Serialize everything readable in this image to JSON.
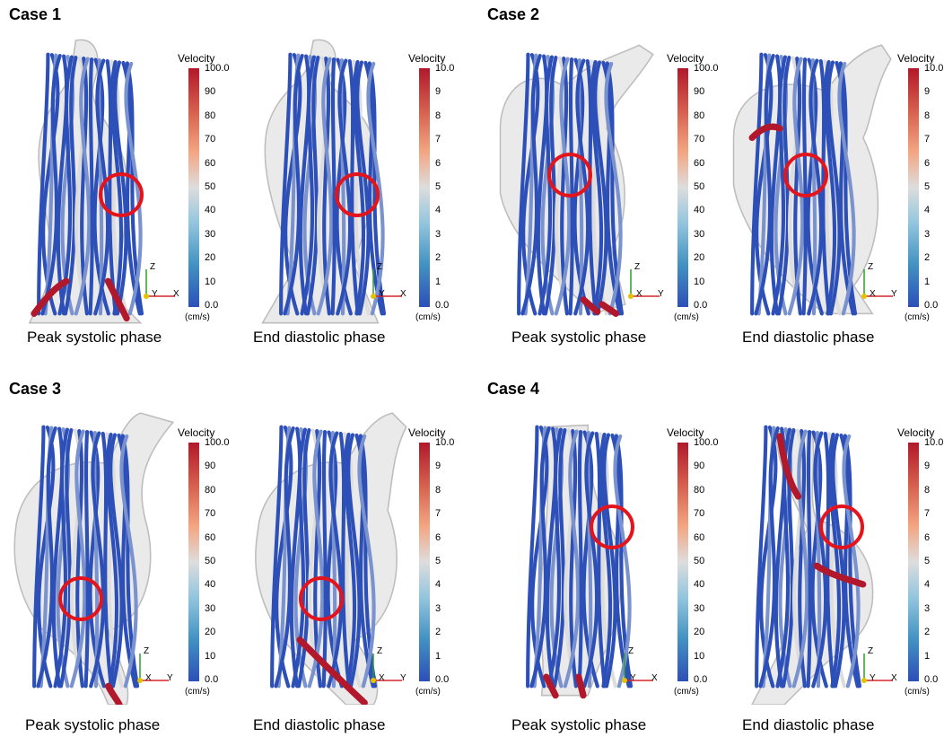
{
  "cases": [
    {
      "title": "Case 1",
      "panels": [
        {
          "caption": "Peak systolic phase",
          "bar": {
            "title": "Velocity",
            "ticks": [
              "100.0",
              "90",
              "80",
              "70",
              "60",
              "50",
              "40",
              "30",
              "20",
              "10",
              "0.0"
            ],
            "unit": "(cm/s)"
          },
          "axes": [
            "Z",
            "Y",
            "X"
          ]
        },
        {
          "caption": "End diastolic phase",
          "bar": {
            "title": "Velocity",
            "ticks": [
              "10.0",
              "9",
              "8",
              "7",
              "6",
              "5",
              "4",
              "3",
              "2",
              "1",
              "0.0"
            ],
            "unit": "(cm/s)"
          },
          "axes": [
            "Z",
            "Y",
            "X"
          ]
        }
      ]
    },
    {
      "title": "Case 2",
      "panels": [
        {
          "caption": "Peak systolic phase",
          "bar": {
            "title": "Velocity",
            "ticks": [
              "100.0",
              "90",
              "80",
              "70",
              "60",
              "50",
              "40",
              "30",
              "20",
              "10",
              "0.0"
            ],
            "unit": "(cm/s)"
          },
          "axes": [
            "Z",
            "X",
            "Y"
          ]
        },
        {
          "caption": "End diastolic phase",
          "bar": {
            "title": "Velocity",
            "ticks": [
              "10.0",
              "9",
              "8",
              "7",
              "6",
              "5",
              "4",
              "3",
              "2",
              "1",
              "0.0"
            ],
            "unit": "(cm/s)"
          },
          "axes": [
            "Z",
            "X",
            "Y"
          ]
        }
      ]
    },
    {
      "title": "Case 3",
      "panels": [
        {
          "caption": "Peak systolic phase",
          "bar": {
            "title": "Velocity",
            "ticks": [
              "100.0",
              "90",
              "80",
              "70",
              "60",
              "50",
              "40",
              "30",
              "20",
              "10",
              "0.0"
            ],
            "unit": "(cm/s)"
          },
          "axes": [
            "Z",
            "X",
            "Y"
          ]
        },
        {
          "caption": "End diastolic phase",
          "bar": {
            "title": "Velocity",
            "ticks": [
              "10.0",
              "9",
              "8",
              "7",
              "6",
              "5",
              "4",
              "3",
              "2",
              "1",
              "0.0"
            ],
            "unit": "(cm/s)"
          },
          "axes": [
            "Z",
            "X",
            "Y"
          ]
        }
      ]
    },
    {
      "title": "Case 4",
      "panels": [
        {
          "caption": "Peak systolic phase",
          "bar": {
            "title": "Velocity",
            "ticks": [
              "100.0",
              "90",
              "80",
              "70",
              "60",
              "50",
              "40",
              "30",
              "20",
              "10",
              "0.0"
            ],
            "unit": "(cm/s)"
          },
          "axes": [
            "Z",
            "Y",
            "X"
          ]
        },
        {
          "caption": "End diastolic phase",
          "bar": {
            "title": "Velocity",
            "ticks": [
              "10.0",
              "9",
              "8",
              "7",
              "6",
              "5",
              "4",
              "3",
              "2",
              "1",
              "0.0"
            ],
            "unit": "(cm/s)"
          },
          "axes": [
            "Z",
            "Y",
            "X"
          ]
        }
      ]
    }
  ],
  "colors": {
    "circle": "#e3141b",
    "low": "#2c4fb8",
    "mid": "#dddddd",
    "high": "#b2182b",
    "shell": "#d9d9d9"
  }
}
